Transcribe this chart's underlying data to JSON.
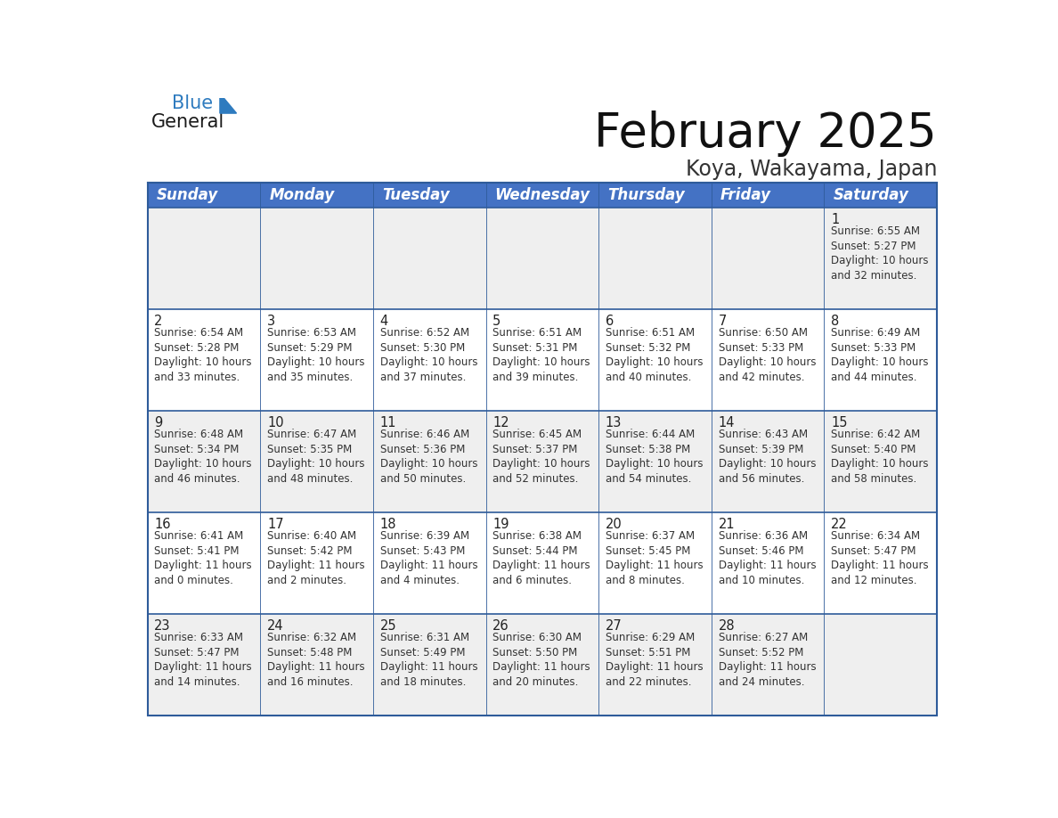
{
  "title": "February 2025",
  "subtitle": "Koya, Wakayama, Japan",
  "header_bg": "#4472C4",
  "header_text_color": "#FFFFFF",
  "cell_bg_odd": "#EFEFEF",
  "cell_bg_even": "#FFFFFF",
  "day_headers": [
    "Sunday",
    "Monday",
    "Tuesday",
    "Wednesday",
    "Thursday",
    "Friday",
    "Saturday"
  ],
  "title_fontsize": 38,
  "subtitle_fontsize": 17,
  "header_fontsize": 12,
  "day_num_fontsize": 10.5,
  "info_fontsize": 8.5,
  "calendar": [
    [
      null,
      null,
      null,
      null,
      null,
      null,
      {
        "day": 1,
        "sunrise": "6:55 AM",
        "sunset": "5:27 PM",
        "daylight": "10 hours\nand 32 minutes."
      }
    ],
    [
      {
        "day": 2,
        "sunrise": "6:54 AM",
        "sunset": "5:28 PM",
        "daylight": "10 hours\nand 33 minutes."
      },
      {
        "day": 3,
        "sunrise": "6:53 AM",
        "sunset": "5:29 PM",
        "daylight": "10 hours\nand 35 minutes."
      },
      {
        "day": 4,
        "sunrise": "6:52 AM",
        "sunset": "5:30 PM",
        "daylight": "10 hours\nand 37 minutes."
      },
      {
        "day": 5,
        "sunrise": "6:51 AM",
        "sunset": "5:31 PM",
        "daylight": "10 hours\nand 39 minutes."
      },
      {
        "day": 6,
        "sunrise": "6:51 AM",
        "sunset": "5:32 PM",
        "daylight": "10 hours\nand 40 minutes."
      },
      {
        "day": 7,
        "sunrise": "6:50 AM",
        "sunset": "5:33 PM",
        "daylight": "10 hours\nand 42 minutes."
      },
      {
        "day": 8,
        "sunrise": "6:49 AM",
        "sunset": "5:33 PM",
        "daylight": "10 hours\nand 44 minutes."
      }
    ],
    [
      {
        "day": 9,
        "sunrise": "6:48 AM",
        "sunset": "5:34 PM",
        "daylight": "10 hours\nand 46 minutes."
      },
      {
        "day": 10,
        "sunrise": "6:47 AM",
        "sunset": "5:35 PM",
        "daylight": "10 hours\nand 48 minutes."
      },
      {
        "day": 11,
        "sunrise": "6:46 AM",
        "sunset": "5:36 PM",
        "daylight": "10 hours\nand 50 minutes."
      },
      {
        "day": 12,
        "sunrise": "6:45 AM",
        "sunset": "5:37 PM",
        "daylight": "10 hours\nand 52 minutes."
      },
      {
        "day": 13,
        "sunrise": "6:44 AM",
        "sunset": "5:38 PM",
        "daylight": "10 hours\nand 54 minutes."
      },
      {
        "day": 14,
        "sunrise": "6:43 AM",
        "sunset": "5:39 PM",
        "daylight": "10 hours\nand 56 minutes."
      },
      {
        "day": 15,
        "sunrise": "6:42 AM",
        "sunset": "5:40 PM",
        "daylight": "10 hours\nand 58 minutes."
      }
    ],
    [
      {
        "day": 16,
        "sunrise": "6:41 AM",
        "sunset": "5:41 PM",
        "daylight": "11 hours\nand 0 minutes."
      },
      {
        "day": 17,
        "sunrise": "6:40 AM",
        "sunset": "5:42 PM",
        "daylight": "11 hours\nand 2 minutes."
      },
      {
        "day": 18,
        "sunrise": "6:39 AM",
        "sunset": "5:43 PM",
        "daylight": "11 hours\nand 4 minutes."
      },
      {
        "day": 19,
        "sunrise": "6:38 AM",
        "sunset": "5:44 PM",
        "daylight": "11 hours\nand 6 minutes."
      },
      {
        "day": 20,
        "sunrise": "6:37 AM",
        "sunset": "5:45 PM",
        "daylight": "11 hours\nand 8 minutes."
      },
      {
        "day": 21,
        "sunrise": "6:36 AM",
        "sunset": "5:46 PM",
        "daylight": "11 hours\nand 10 minutes."
      },
      {
        "day": 22,
        "sunrise": "6:34 AM",
        "sunset": "5:47 PM",
        "daylight": "11 hours\nand 12 minutes."
      }
    ],
    [
      {
        "day": 23,
        "sunrise": "6:33 AM",
        "sunset": "5:47 PM",
        "daylight": "11 hours\nand 14 minutes."
      },
      {
        "day": 24,
        "sunrise": "6:32 AM",
        "sunset": "5:48 PM",
        "daylight": "11 hours\nand 16 minutes."
      },
      {
        "day": 25,
        "sunrise": "6:31 AM",
        "sunset": "5:49 PM",
        "daylight": "11 hours\nand 18 minutes."
      },
      {
        "day": 26,
        "sunrise": "6:30 AM",
        "sunset": "5:50 PM",
        "daylight": "11 hours\nand 20 minutes."
      },
      {
        "day": 27,
        "sunrise": "6:29 AM",
        "sunset": "5:51 PM",
        "daylight": "11 hours\nand 22 minutes."
      },
      {
        "day": 28,
        "sunrise": "6:27 AM",
        "sunset": "5:52 PM",
        "daylight": "11 hours\nand 24 minutes."
      },
      null
    ]
  ],
  "border_color": "#2E5B9A",
  "line_color": "#2E5B9A",
  "logo_general_color": "#1A1A1A",
  "logo_blue_color": "#2E7BBF",
  "triangle_color": "#2E7BBF"
}
